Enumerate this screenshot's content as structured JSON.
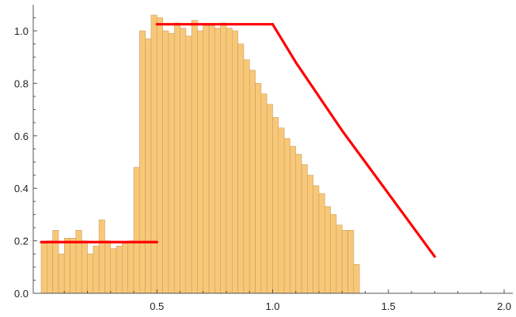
{
  "chart_data": {
    "type": "bar",
    "title": "",
    "xlabel": "",
    "ylabel": "",
    "xlim": [
      0,
      2.0
    ],
    "ylim": [
      0,
      1.1
    ],
    "x_ticks": [
      {
        "value": 0.5,
        "label": "0.5"
      },
      {
        "value": 1.0,
        "label": "1.0"
      },
      {
        "value": 1.5,
        "label": "1.5"
      },
      {
        "value": 2.0,
        "label": "2.0"
      }
    ],
    "y_ticks": [
      {
        "value": 0.0,
        "label": "0.0"
      },
      {
        "value": 0.2,
        "label": "0.2"
      },
      {
        "value": 0.4,
        "label": "0.4"
      },
      {
        "value": 0.6,
        "label": "0.6"
      },
      {
        "value": 0.8,
        "label": "0.8"
      },
      {
        "value": 1.0,
        "label": "1.0"
      }
    ],
    "bin_width": 0.025,
    "bin_start": 0.0,
    "values": [
      0.19,
      0.2,
      0.24,
      0.15,
      0.21,
      0.21,
      0.24,
      0.2,
      0.15,
      0.18,
      0.28,
      0.2,
      0.17,
      0.18,
      0.19,
      0.2,
      0.48,
      1.0,
      0.97,
      1.06,
      1.05,
      1.0,
      0.99,
      1.03,
      1.01,
      0.98,
      1.04,
      1.0,
      1.02,
      1.02,
      1.01,
      1.03,
      1.01,
      1.0,
      0.95,
      0.89,
      0.85,
      0.8,
      0.76,
      0.72,
      0.67,
      0.63,
      0.59,
      0.56,
      0.53,
      0.49,
      0.45,
      0.41,
      0.38,
      0.33,
      0.3,
      0.26,
      0.24,
      0.24,
      0.11
    ],
    "fit_lines": [
      {
        "x": [
          0.0,
          0.5
        ],
        "y": [
          0.195,
          0.195
        ]
      },
      {
        "x": [
          0.5,
          1.0
        ],
        "y": [
          1.025,
          1.025
        ]
      },
      {
        "x": [
          1.0,
          1.1,
          1.2,
          1.3,
          1.4,
          1.5,
          1.6,
          1.7
        ],
        "y": [
          1.025,
          0.88,
          0.75,
          0.62,
          0.5,
          0.38,
          0.26,
          0.14
        ]
      }
    ],
    "colors": {
      "bar_fill": "#f8c878",
      "bar_edge": "#c8a060",
      "fit_line": "#ff0000"
    },
    "grid": false,
    "legend": "none"
  }
}
